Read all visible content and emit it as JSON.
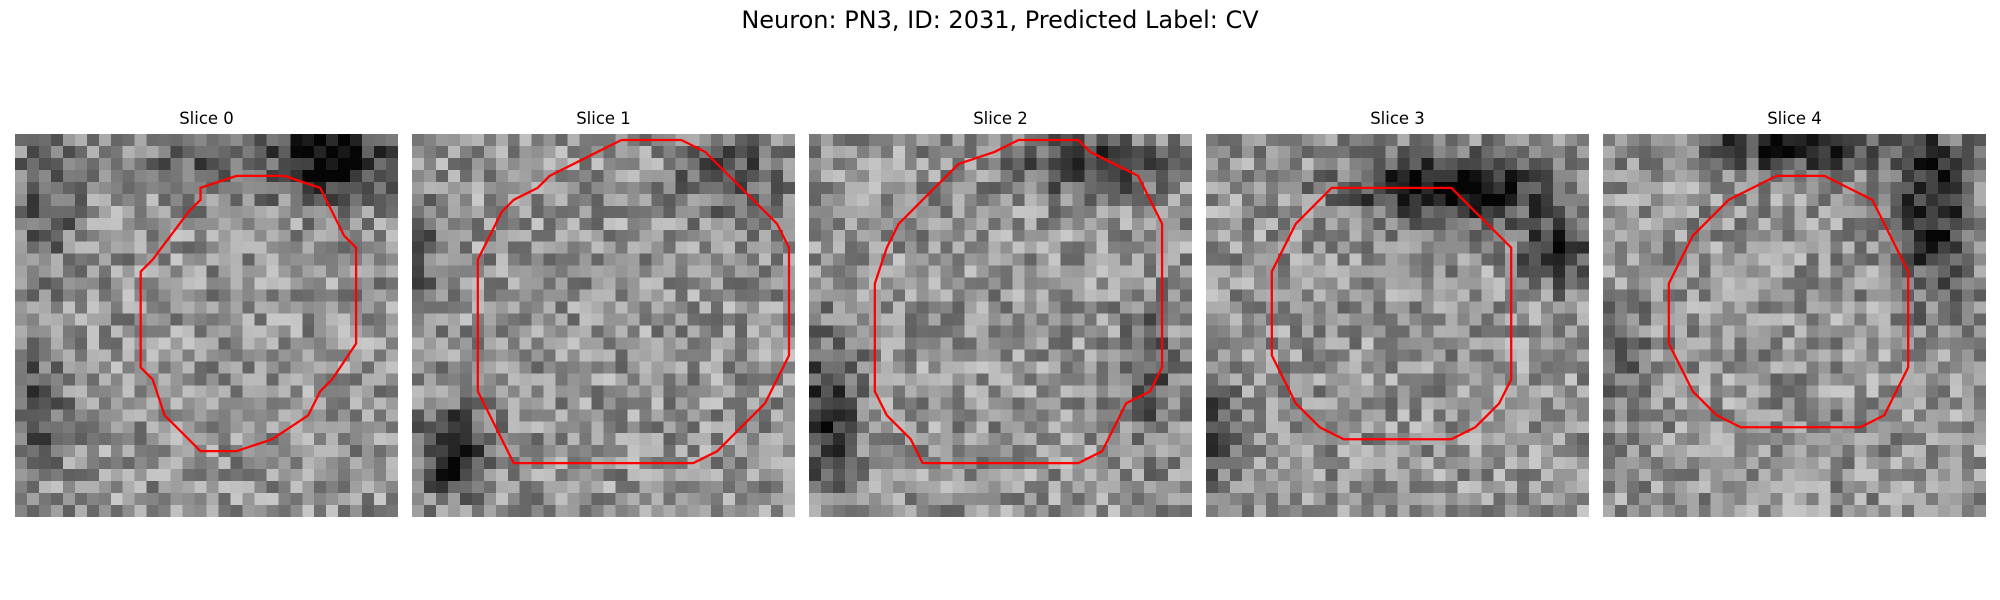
{
  "figure": {
    "title": "Neuron: PN3, ID: 2031, Predicted Label: CV"
  },
  "panels": [
    {
      "title": "Slice 0",
      "seed": 11,
      "dark_blobs": [
        [
          26,
          1.5,
          5.5,
          3.2,
          0.55
        ],
        [
          2,
          5,
          3,
          5,
          0.25
        ],
        [
          1,
          22,
          2.5,
          5,
          0.3
        ],
        [
          14,
          2,
          4,
          2.5,
          0.2
        ]
      ],
      "outline": [
        [
          10,
          11
        ],
        [
          11,
          10
        ],
        [
          14,
          6
        ],
        [
          15,
          5
        ],
        [
          15,
          4
        ],
        [
          18,
          3
        ],
        [
          22,
          3
        ],
        [
          25,
          4
        ],
        [
          26,
          6
        ],
        [
          27,
          8
        ],
        [
          28,
          9
        ],
        [
          28,
          13
        ],
        [
          28,
          17
        ],
        [
          26,
          20
        ],
        [
          25,
          21
        ],
        [
          24,
          23
        ],
        [
          21,
          25
        ],
        [
          18,
          26
        ],
        [
          15,
          26
        ],
        [
          13,
          24
        ],
        [
          12,
          23
        ],
        [
          11,
          20
        ],
        [
          10,
          19
        ],
        [
          10,
          17
        ]
      ]
    },
    {
      "title": "Slice 1",
      "seed": 23,
      "dark_blobs": [
        [
          3,
          26,
          2.5,
          3.5,
          0.6
        ],
        [
          26,
          3,
          4,
          3,
          0.3
        ],
        [
          0,
          10,
          2,
          6,
          0.2
        ]
      ],
      "outline": [
        [
          5,
          10
        ],
        [
          6,
          8
        ],
        [
          7,
          6
        ],
        [
          8,
          5
        ],
        [
          10,
          4
        ],
        [
          11,
          3
        ],
        [
          13,
          2
        ],
        [
          15,
          1
        ],
        [
          17,
          0
        ],
        [
          20,
          0
        ],
        [
          22,
          0
        ],
        [
          24,
          1
        ],
        [
          26,
          3
        ],
        [
          28,
          5
        ],
        [
          30,
          7
        ],
        [
          31,
          9
        ],
        [
          31,
          12
        ],
        [
          31,
          15
        ],
        [
          31,
          18
        ],
        [
          30,
          20
        ],
        [
          29,
          22
        ],
        [
          27,
          24
        ],
        [
          25,
          26
        ],
        [
          23,
          27
        ],
        [
          21,
          27
        ],
        [
          18,
          27
        ],
        [
          14,
          27
        ],
        [
          11,
          27
        ],
        [
          8,
          27
        ],
        [
          7,
          25
        ],
        [
          6,
          23
        ],
        [
          5,
          21
        ],
        [
          5,
          18
        ],
        [
          5,
          14
        ]
      ]
    },
    {
      "title": "Slice 2",
      "seed": 37,
      "dark_blobs": [
        [
          1,
          23,
          2.5,
          6,
          0.45
        ],
        [
          23,
          2,
          6,
          2.5,
          0.4
        ],
        [
          28,
          20,
          2,
          6,
          0.25
        ]
      ],
      "outline": [
        [
          5,
          12
        ],
        [
          6,
          9
        ],
        [
          7,
          7
        ],
        [
          8,
          6
        ],
        [
          9,
          5
        ],
        [
          10,
          4
        ],
        [
          11,
          3
        ],
        [
          12,
          2
        ],
        [
          15,
          1
        ],
        [
          17,
          0
        ],
        [
          20,
          0
        ],
        [
          22,
          0
        ],
        [
          23,
          1
        ],
        [
          25,
          2
        ],
        [
          27,
          3
        ],
        [
          28,
          5
        ],
        [
          29,
          7
        ],
        [
          29,
          10
        ],
        [
          29,
          13
        ],
        [
          29,
          16
        ],
        [
          29,
          19
        ],
        [
          28,
          21
        ],
        [
          26,
          22
        ],
        [
          25,
          24
        ],
        [
          24,
          26
        ],
        [
          22,
          27
        ],
        [
          20,
          27
        ],
        [
          17,
          27
        ],
        [
          14,
          27
        ],
        [
          11,
          27
        ],
        [
          9,
          27
        ],
        [
          8,
          25
        ],
        [
          6,
          23
        ],
        [
          5,
          21
        ],
        [
          5,
          18
        ],
        [
          5,
          15
        ]
      ]
    },
    {
      "title": "Slice 3",
      "seed": 53,
      "dark_blobs": [
        [
          20,
          4,
          8,
          2.5,
          0.6
        ],
        [
          29,
          9,
          3,
          3,
          0.45
        ],
        [
          0,
          24,
          2,
          4,
          0.35
        ]
      ],
      "outline": [
        [
          5,
          11
        ],
        [
          6,
          9
        ],
        [
          7,
          7
        ],
        [
          8,
          6
        ],
        [
          9,
          5
        ],
        [
          10,
          4
        ],
        [
          12,
          4
        ],
        [
          15,
          4
        ],
        [
          18,
          4
        ],
        [
          20,
          4
        ],
        [
          21,
          5
        ],
        [
          22,
          6
        ],
        [
          23,
          7
        ],
        [
          24,
          8
        ],
        [
          25,
          9
        ],
        [
          25,
          12
        ],
        [
          25,
          15
        ],
        [
          25,
          18
        ],
        [
          25,
          20
        ],
        [
          24,
          22
        ],
        [
          23,
          23
        ],
        [
          22,
          24
        ],
        [
          20,
          25
        ],
        [
          17,
          25
        ],
        [
          14,
          25
        ],
        [
          11,
          25
        ],
        [
          9,
          24
        ],
        [
          8,
          23
        ],
        [
          7,
          22
        ],
        [
          6,
          20
        ],
        [
          5,
          18
        ],
        [
          5,
          15
        ]
      ]
    },
    {
      "title": "Slice 4",
      "seed": 71,
      "dark_blobs": [
        [
          16,
          0.5,
          8,
          2,
          0.5
        ],
        [
          27,
          6,
          3,
          7,
          0.45
        ],
        [
          1,
          18,
          2,
          4,
          0.25
        ]
      ],
      "outline": [
        [
          5,
          12
        ],
        [
          6,
          10
        ],
        [
          7,
          8
        ],
        [
          8,
          7
        ],
        [
          9,
          6
        ],
        [
          10,
          5
        ],
        [
          12,
          4
        ],
        [
          14,
          3
        ],
        [
          16,
          3
        ],
        [
          18,
          3
        ],
        [
          20,
          4
        ],
        [
          22,
          5
        ],
        [
          23,
          7
        ],
        [
          24,
          9
        ],
        [
          25,
          11
        ],
        [
          25,
          14
        ],
        [
          25,
          17
        ],
        [
          25,
          19
        ],
        [
          24,
          21
        ],
        [
          23,
          23
        ],
        [
          21,
          24
        ],
        [
          19,
          24
        ],
        [
          17,
          24
        ],
        [
          14,
          24
        ],
        [
          11,
          24
        ],
        [
          9,
          23
        ],
        [
          8,
          22
        ],
        [
          7,
          21
        ],
        [
          6,
          19
        ],
        [
          5,
          17
        ],
        [
          5,
          14
        ]
      ]
    }
  ],
  "colors": {
    "outline": "#ff0000",
    "background": "#ffffff"
  }
}
